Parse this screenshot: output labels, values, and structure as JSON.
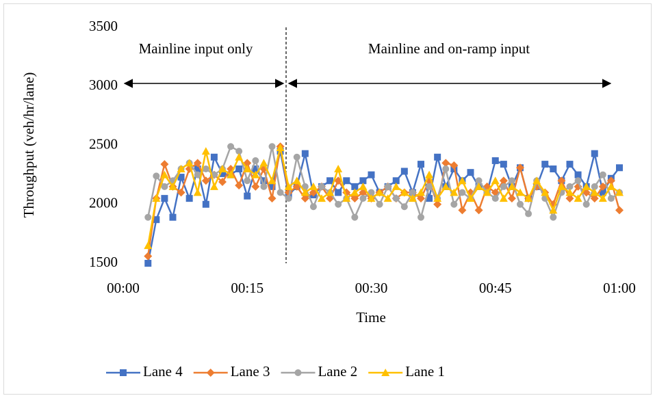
{
  "chart_data": {
    "type": "line",
    "x_label": "Time",
    "y_label": "Throughput (veh/hr/lane)",
    "annotations": [
      "Mainline input only",
      "Mainline and on-ramp input"
    ],
    "x": [
      3,
      4,
      5,
      6,
      7,
      8,
      9,
      10,
      11,
      12,
      13,
      14,
      15,
      16,
      17,
      18,
      19,
      20,
      21,
      22,
      23,
      24,
      25,
      26,
      27,
      28,
      29,
      30,
      31,
      32,
      33,
      34,
      35,
      36,
      37,
      38,
      39,
      40,
      41,
      42,
      43,
      44,
      45,
      46,
      47,
      48,
      49,
      50,
      51,
      52,
      53,
      54,
      55,
      56,
      57,
      58,
      59,
      60
    ],
    "xlim": [
      0,
      60
    ],
    "xticks": [
      {
        "value": 0,
        "label": "00:00"
      },
      {
        "value": 15,
        "label": "00:15"
      },
      {
        "value": 30,
        "label": "00:30"
      },
      {
        "value": 45,
        "label": "00:45"
      },
      {
        "value": 60,
        "label": "01:00"
      }
    ],
    "ylim": [
      1500,
      3500
    ],
    "yticks": [
      1500,
      2000,
      2500,
      3000,
      3500
    ],
    "grid": false,
    "legend": "bottom",
    "series": [
      {
        "name": "Lane 4",
        "color": "#4472c4",
        "marker": "square",
        "values": [
          1500,
          1870,
          2050,
          1890,
          2230,
          2050,
          2300,
          2000,
          2400,
          2260,
          2250,
          2300,
          2070,
          2300,
          2200,
          2150,
          2450,
          2080,
          2150,
          2430,
          2080,
          2150,
          2200,
          2100,
          2200,
          2150,
          2200,
          2250,
          2100,
          2150,
          2200,
          2280,
          2100,
          2340,
          2050,
          2400,
          2150,
          2300,
          2200,
          2270,
          2150,
          2100,
          2370,
          2340,
          2150,
          2310,
          2050,
          2150,
          2340,
          2300,
          2200,
          2340,
          2250,
          2150,
          2430,
          2100,
          2220,
          2310
        ]
      },
      {
        "name": "Lane 3",
        "color": "#ed7d31",
        "marker": "diamond",
        "values": [
          1560,
          2050,
          2340,
          2150,
          2100,
          2300,
          2350,
          2200,
          2250,
          2190,
          2300,
          2160,
          2350,
          2150,
          2300,
          2050,
          2490,
          2100,
          2150,
          2050,
          2100,
          2150,
          2050,
          2200,
          2100,
          2050,
          2100,
          2050,
          2100,
          2150,
          2050,
          2100,
          2100,
          2050,
          2200,
          2000,
          2350,
          2330,
          1950,
          2100,
          1950,
          2150,
          2100,
          2200,
          2050,
          2310,
          2050,
          2150,
          2100,
          2000,
          2200,
          2050,
          2150,
          2100,
          2050,
          2150,
          2200,
          1950
        ]
      },
      {
        "name": "Lane 2",
        "color": "#a5a5a5",
        "marker": "circle",
        "values": [
          1890,
          2240,
          2150,
          2200,
          2300,
          2350,
          2250,
          2300,
          2250,
          2300,
          2490,
          2450,
          2200,
          2370,
          2150,
          2490,
          2100,
          2050,
          2400,
          2150,
          1980,
          2150,
          2100,
          2000,
          2050,
          1890,
          2050,
          2100,
          2000,
          2150,
          2050,
          1980,
          2100,
          1890,
          2150,
          2050,
          2300,
          2000,
          2100,
          2050,
          2200,
          2100,
          2050,
          2150,
          2200,
          2000,
          1920,
          2200,
          2050,
          1890,
          2100,
          2150,
          2200,
          2000,
          2150,
          2250,
          2050,
          2100
        ]
      },
      {
        "name": "Lane 1",
        "color": "#ffc000",
        "marker": "triangle",
        "values": [
          1650,
          2050,
          2250,
          2150,
          2300,
          2350,
          2100,
          2450,
          2150,
          2300,
          2250,
          2400,
          2300,
          2250,
          2350,
          2200,
          2480,
          2150,
          2200,
          2100,
          2150,
          2050,
          2100,
          2300,
          2050,
          2100,
          2150,
          2050,
          2100,
          2050,
          2150,
          2100,
          2050,
          2100,
          2250,
          2050,
          2150,
          2100,
          2200,
          2050,
          2150,
          2100,
          2200,
          2050,
          2150,
          2100,
          2050,
          2200,
          2100,
          1950,
          2150,
          2100,
          2050,
          2150,
          2100,
          2050,
          2150,
          2100
        ]
      }
    ]
  }
}
